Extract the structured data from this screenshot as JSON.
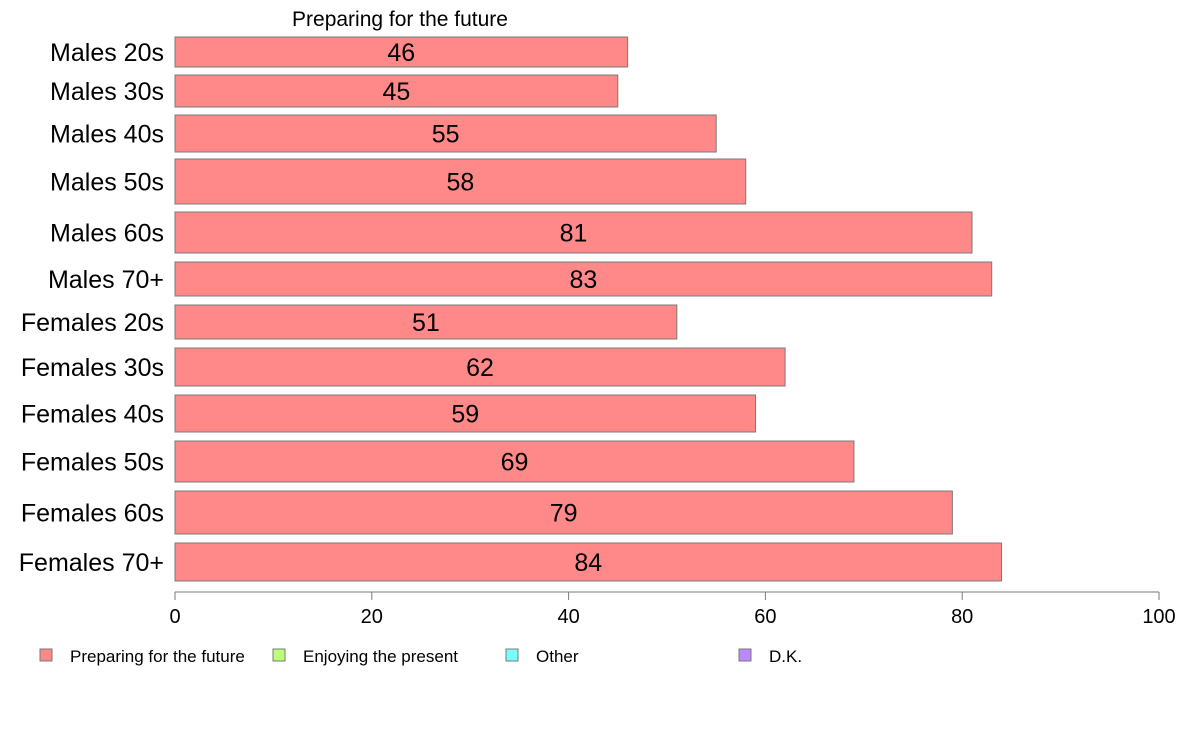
{
  "chart_data": {
    "type": "bar",
    "orientation": "horizontal",
    "title": "Preparing for the future",
    "categories": [
      "Males 20s",
      "Males 30s",
      "Males 40s",
      "Males 50s",
      "Males 60s",
      "Males 70+",
      "Females 20s",
      "Females 30s",
      "Females 40s",
      "Females 50s",
      "Females 60s",
      "Females 70+"
    ],
    "series": [
      {
        "name": "Preparing for the future",
        "color": "#ff8888",
        "values": [
          46,
          45,
          55,
          58,
          81,
          83,
          51,
          62,
          59,
          69,
          79,
          84
        ]
      }
    ],
    "xlim": [
      0,
      100
    ],
    "xticks": [
      "0",
      "20",
      "40",
      "60",
      "80",
      "100"
    ],
    "grid": false,
    "legend": {
      "placement": "bottom-left",
      "entries": [
        {
          "label": "Preparing for the future",
          "color": "#ff8888"
        },
        {
          "label": "Enjoying the present",
          "color": "#bbff77"
        },
        {
          "label": "Other",
          "color": "#77ffff"
        },
        {
          "label": "D.K.",
          "color": "#bb88ff"
        }
      ]
    }
  }
}
